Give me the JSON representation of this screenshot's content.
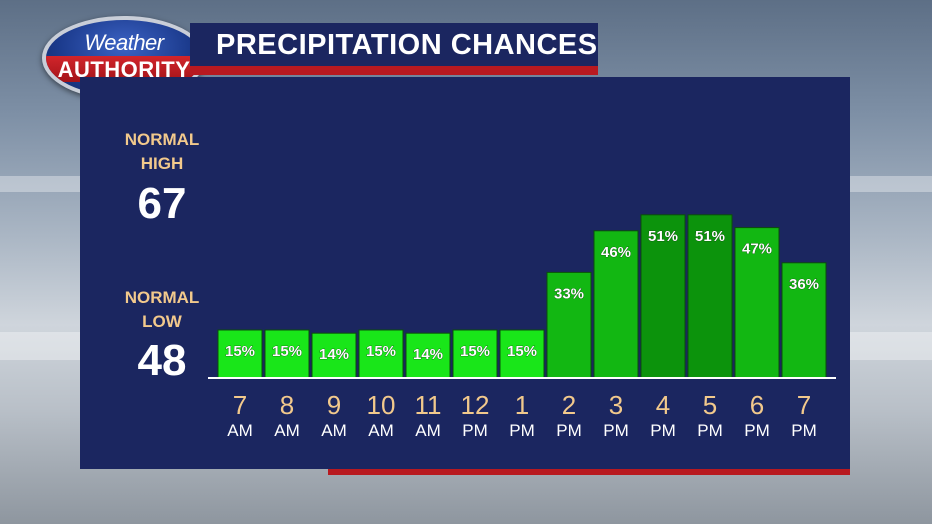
{
  "header": {
    "logo_line1": "Weather",
    "logo_line2": "AUTHORITY",
    "title": "PRECIPITATION CHANCES"
  },
  "sidebar": {
    "high_label_1": "NORMAL",
    "high_label_2": "HIGH",
    "high_value": "67",
    "low_label_1": "NORMAL",
    "low_label_2": "LOW",
    "low_value": "48"
  },
  "colors": {
    "panel": "#1b2660",
    "accent_red": "#b81920",
    "bar_light": "#19e619",
    "bar_mid": "#12b712",
    "bar_dark": "#0c930c",
    "tick_number": "#f2c98c",
    "tick_ampm": "#ffffff"
  },
  "chart_data": {
    "type": "bar",
    "title": "PRECIPITATION CHANCES",
    "categories": [
      "7 AM",
      "8 AM",
      "9 AM",
      "10 AM",
      "11 AM",
      "12 PM",
      "1 PM",
      "2 PM",
      "3 PM",
      "4 PM",
      "5 PM",
      "6 PM",
      "7 PM"
    ],
    "tick_numbers": [
      "7",
      "8",
      "9",
      "10",
      "11",
      "12",
      "1",
      "2",
      "3",
      "4",
      "5",
      "6",
      "7"
    ],
    "tick_ampm": [
      "AM",
      "AM",
      "AM",
      "AM",
      "AM",
      "PM",
      "PM",
      "PM",
      "PM",
      "PM",
      "PM",
      "PM",
      "PM"
    ],
    "values": [
      15,
      15,
      14,
      15,
      14,
      15,
      15,
      33,
      46,
      51,
      51,
      47,
      36
    ],
    "labels": [
      "15%",
      "15%",
      "14%",
      "15%",
      "14%",
      "15%",
      "15%",
      "33%",
      "46%",
      "51%",
      "51%",
      "47%",
      "36%"
    ],
    "unit": "%",
    "ylim": [
      0,
      100
    ],
    "grid": false,
    "legend": "none"
  }
}
